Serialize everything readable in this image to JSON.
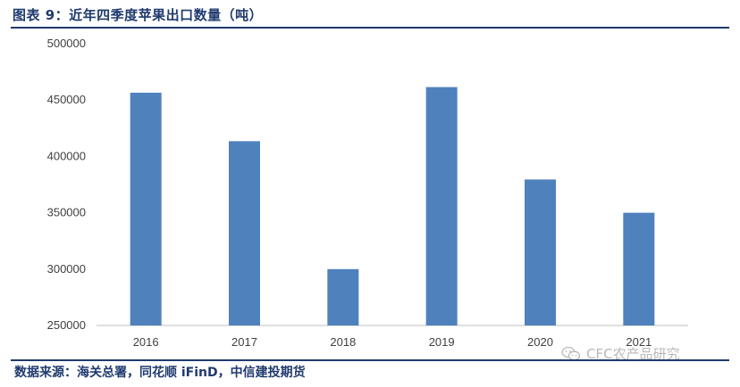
{
  "title": "图表 9：近年四季度苹果出口数量（吨）",
  "source": "数据来源：海关总署，同花顺 iFinD，中信建投期货",
  "watermark": {
    "icon": "wechat-icon",
    "text": "CFC农产品研究"
  },
  "colors": {
    "bar": "#4f81bd",
    "heading": "#1f3a6e",
    "axis": "#bfbfbf"
  },
  "chart_data": {
    "type": "bar",
    "title": "",
    "xlabel": "",
    "ylabel": "",
    "categories": [
      "2016",
      "2017",
      "2018",
      "2019",
      "2020",
      "2021"
    ],
    "values": [
      456500,
      413500,
      300000,
      461500,
      379500,
      350000
    ],
    "ylim": [
      250000,
      500000
    ],
    "yticks": [
      250000,
      300000,
      350000,
      400000,
      450000,
      500000
    ],
    "grid": false,
    "legend": "none"
  }
}
